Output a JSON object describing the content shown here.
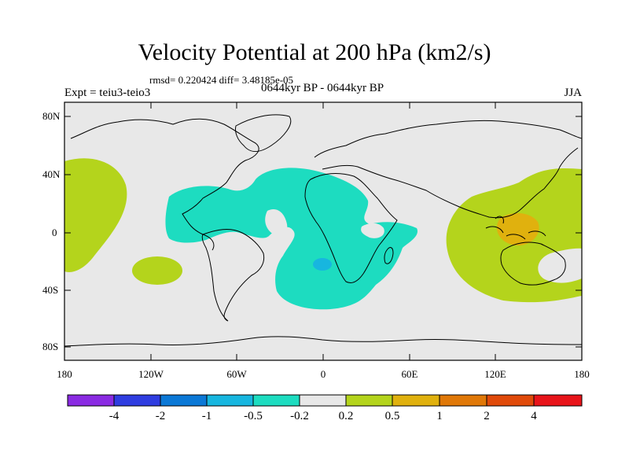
{
  "figure": {
    "title": "Velocity Potential at 200 hPa (km2/s)",
    "stats": "rmsd= 0.220424 diff= 3.48185e-05",
    "experiment": "Expt = teiu3-teio3",
    "period": "0644kyr BP - 0644kyr BP",
    "season": "JJA"
  },
  "axes": {
    "lat_ticks": [
      "80N",
      "40N",
      "0",
      "40S",
      "80S"
    ],
    "lon_ticks": [
      "180",
      "120W",
      "60W",
      "0",
      "60E",
      "120E",
      "180"
    ]
  },
  "colorbar": {
    "labels": [
      "-4",
      "-2",
      "-1",
      "-0.5",
      "-0.2",
      "0.2",
      "0.5",
      "1",
      "2",
      "4"
    ],
    "colors": [
      "#8a2be2",
      "#2f3de0",
      "#0b78d6",
      "#17b6df",
      "#1ddcc0",
      "#e8e8e8",
      "#b4d41c",
      "#e0b10e",
      "#e07808",
      "#e04a0a",
      "#e8141a"
    ]
  },
  "regions": [
    {
      "name": "Central Pacific anomaly",
      "sign": "positive",
      "level": "0.2 to 0.5"
    },
    {
      "name": "South Pacific anomaly",
      "sign": "positive",
      "level": "0.2 to 0.5"
    },
    {
      "name": "Tropical Atlantic anomaly",
      "sign": "negative",
      "level": "-0.5 to -0.2"
    },
    {
      "name": "South Atlantic minimum",
      "sign": "negative",
      "level": "-1 to -0.5"
    },
    {
      "name": "Maritime Continent anomaly",
      "sign": "positive",
      "level": "0.2 to 0.5"
    },
    {
      "name": "Maritime Continent maximum",
      "sign": "positive",
      "level": "0.5 to 1"
    }
  ]
}
